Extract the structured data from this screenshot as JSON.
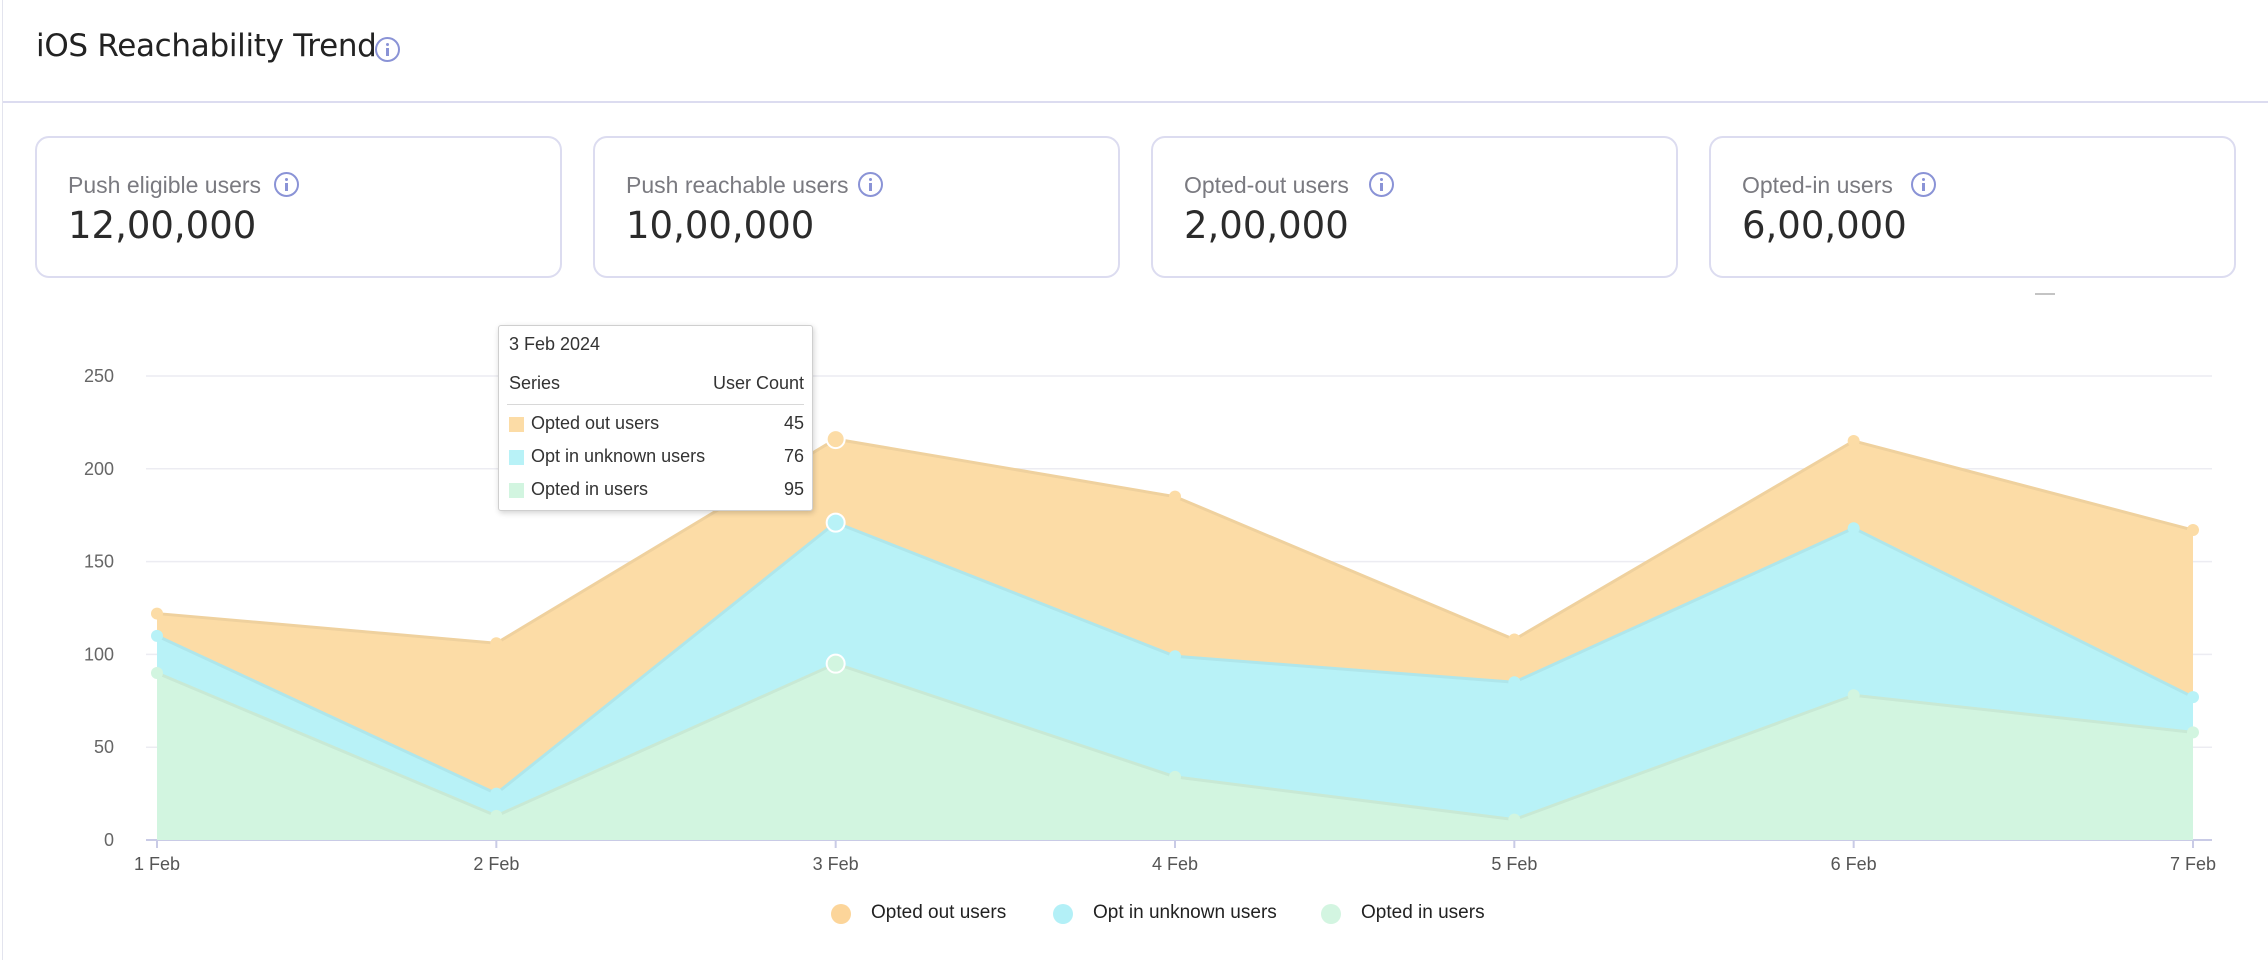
{
  "header": {
    "title": "iOS Reachability Trend"
  },
  "stats": [
    {
      "label": "Push eligible users",
      "value": "12,00,000"
    },
    {
      "label": "Push reachable users",
      "value": "10,00,000"
    },
    {
      "label": "Opted-out users",
      "value": "2,00,000"
    },
    {
      "label": "Opted-in users",
      "value": "6,00,000"
    }
  ],
  "tooltip": {
    "date": "3 Feb 2024",
    "series_header": "Series",
    "count_header": "User Count",
    "rows": [
      {
        "name": "Opted out users",
        "value": "45",
        "color": "#fcdca6"
      },
      {
        "name": "Opt in unknown users",
        "value": "76",
        "color": "#b8f2f7"
      },
      {
        "name": "Opted in users",
        "value": "95",
        "color": "#d2f5e0"
      }
    ]
  },
  "chart_data": {
    "type": "area",
    "stacked": true,
    "categories": [
      "1 Feb",
      "2 Feb",
      "3 Feb",
      "4 Feb",
      "5 Feb",
      "6 Feb",
      "7 Feb"
    ],
    "series": [
      {
        "name": "Opted in users",
        "color": "#d2f5e0",
        "values": [
          90,
          13,
          95,
          34,
          11,
          78,
          58
        ]
      },
      {
        "name": "Opt in unknown users",
        "color": "#b8f2f7",
        "values": [
          20,
          12,
          76,
          65,
          74,
          90,
          19
        ]
      },
      {
        "name": "Opted out users",
        "color": "#fcdca6",
        "values": [
          12,
          81,
          45,
          86,
          23,
          47,
          90
        ]
      }
    ],
    "yticks": [
      0,
      50,
      100,
      150,
      200,
      250
    ],
    "ylim": [
      0,
      250
    ],
    "grid": true,
    "legend_position": "bottom-center",
    "xlabel": "",
    "ylabel": ""
  },
  "legend": [
    {
      "label": "Opted out users",
      "color": "#fcd59a"
    },
    {
      "label": "Opt in unknown users",
      "color": "#b3f0f7"
    },
    {
      "label": "Opted in users",
      "color": "#d3f5e1"
    }
  ]
}
